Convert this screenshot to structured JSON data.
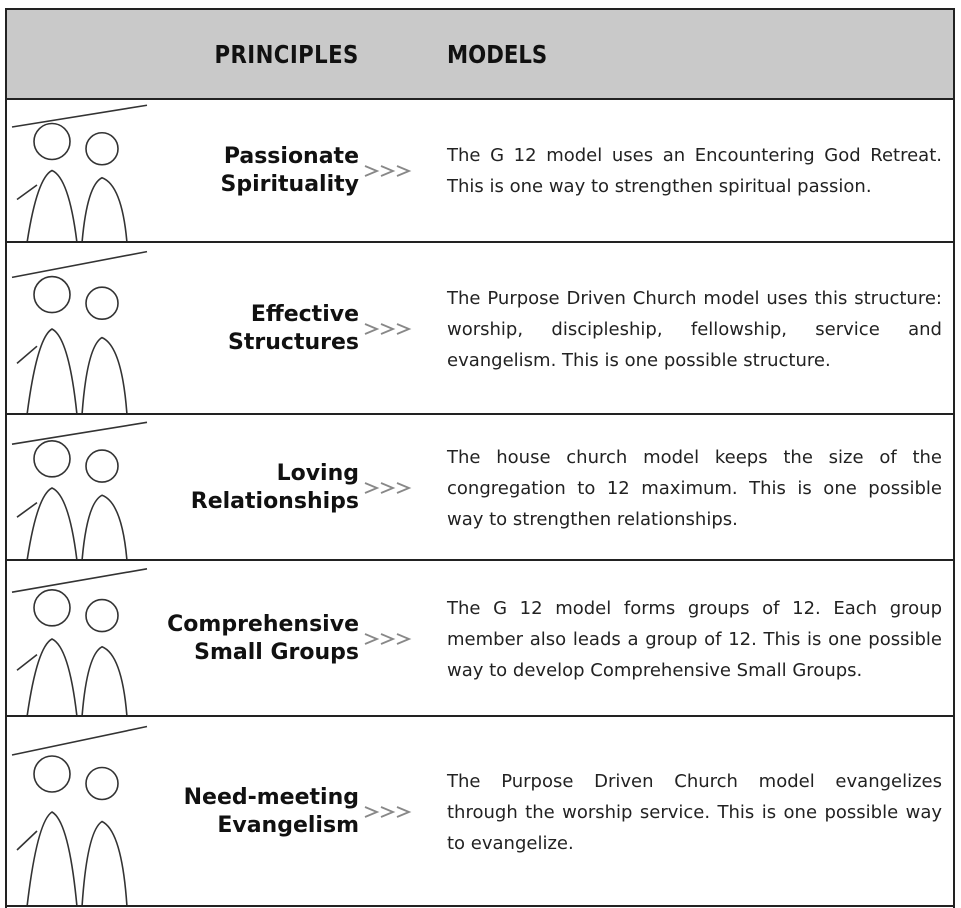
{
  "header": {
    "principles": "PRINCIPLES",
    "models": "MODELS"
  },
  "rows": [
    {
      "principle": [
        "Passionate",
        "Spirituality"
      ],
      "model": "The G 12 model uses an Encountering God Retreat. This is one way to strengthen spiritual passion."
    },
    {
      "principle": [
        "Effective",
        "Structures"
      ],
      "model": "The Purpose Driven Church model uses this structure: worship, discipleship, fellowship, service and evangelism. This is one possible structure."
    },
    {
      "principle": [
        "Loving",
        "Relationships"
      ],
      "model": "The house church model keeps the size of the congregation to 12 maximum. This is one possible way to strengthen relationships."
    },
    {
      "principle": [
        "Comprehensive",
        "Small Groups"
      ],
      "model": "The G 12 model forms groups of 12. Each group member also leads a group of 12. This is one possible way to develop Comprehensive Small Groups."
    },
    {
      "principle": [
        "Need-meeting",
        "Evangelism"
      ],
      "model": "The Purpose Driven Church model evangelizes through the worship service. This is one possible way to evangelize."
    }
  ]
}
